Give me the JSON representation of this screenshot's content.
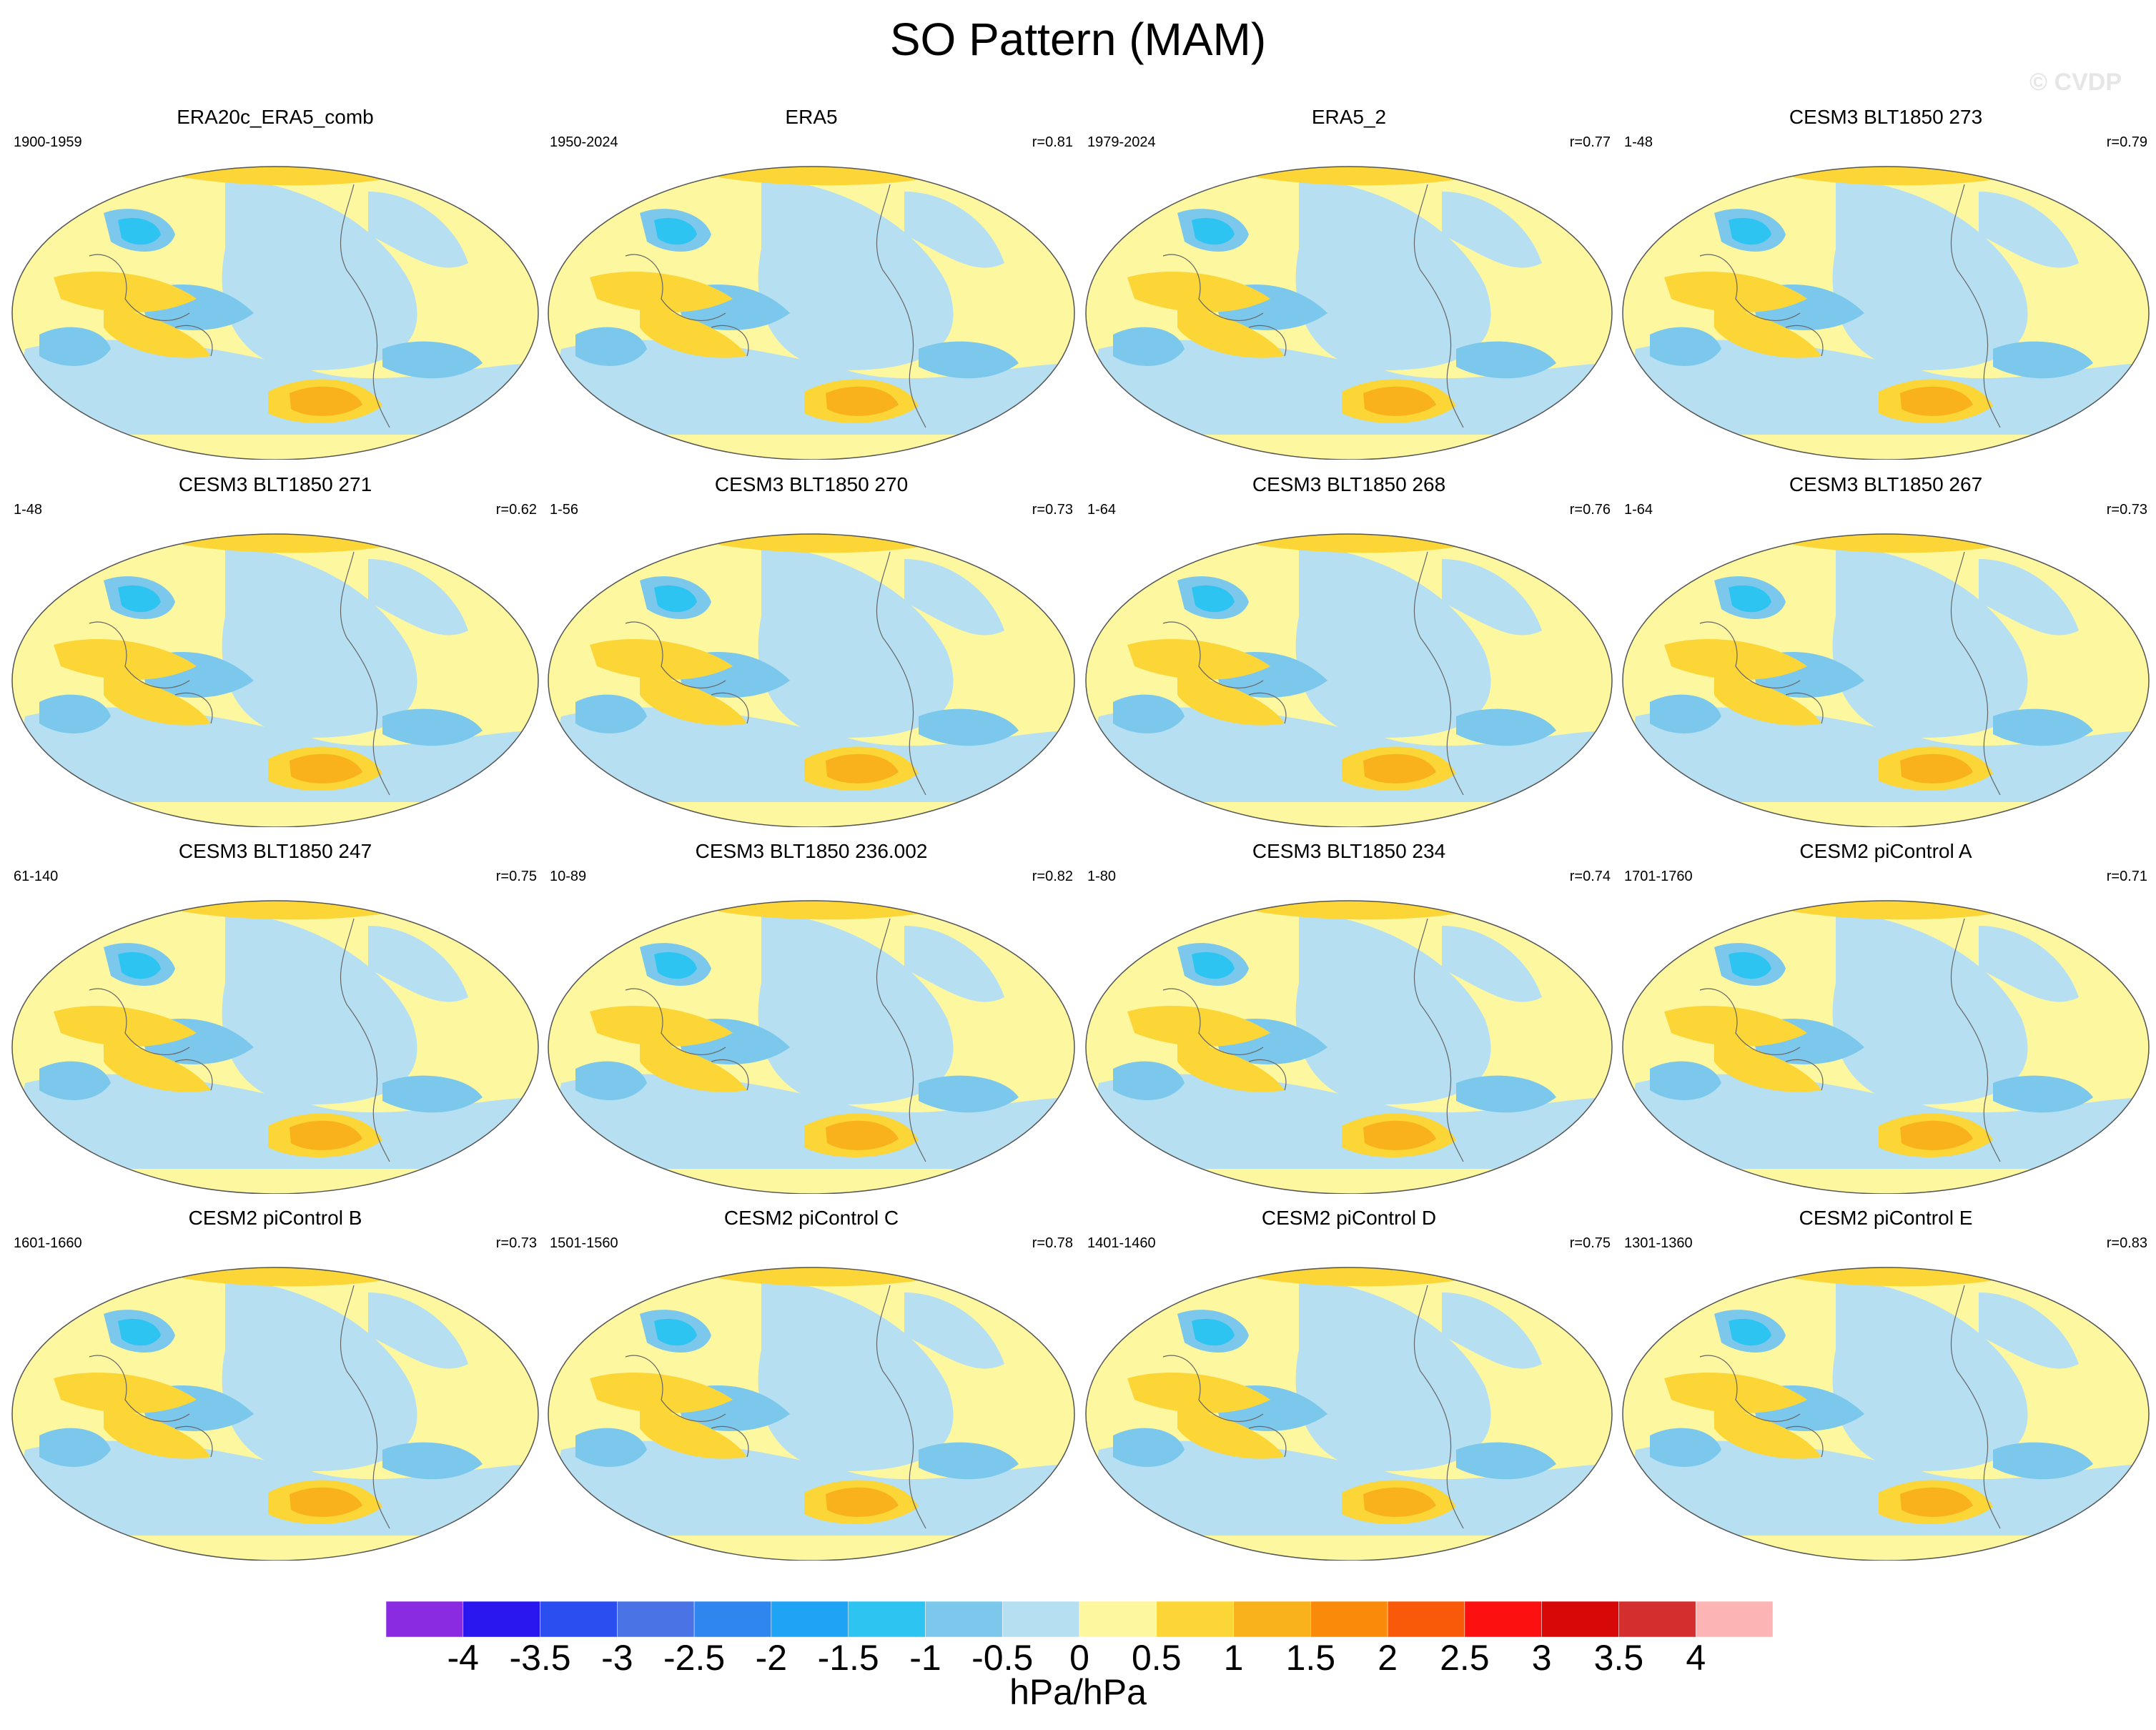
{
  "title": "SO Pattern (MAM)",
  "watermark": "© CVDP",
  "units": "hPa/hPa",
  "colorbar": {
    "labels": [
      "-4",
      "-3.5",
      "-3",
      "-2.5",
      "-2",
      "-1.5",
      "-1",
      "-0.5",
      "0",
      "0.5",
      "1",
      "1.5",
      "2",
      "2.5",
      "3",
      "3.5",
      "4"
    ],
    "colors": [
      "#8a2be2",
      "#2a17f0",
      "#2a4ef0",
      "#4a74e6",
      "#2f86ef",
      "#1ea3f5",
      "#2ec4f2",
      "#7cc8ec",
      "#b6dff2",
      "#fdf7a0",
      "#fbd636",
      "#f9b21c",
      "#f98a0a",
      "#f85a0a",
      "#fc1010",
      "#d60808",
      "#d42e2e",
      "#fcb4b4"
    ]
  },
  "panels": [
    {
      "title": "ERA20c_ERA5_comb",
      "range": "1900-1959",
      "corr": ""
    },
    {
      "title": "ERA5",
      "range": "1950-2024",
      "corr": "r=0.81"
    },
    {
      "title": "ERA5_2",
      "range": "1979-2024",
      "corr": "r=0.77"
    },
    {
      "title": "CESM3 BLT1850 273",
      "range": "1-48",
      "corr": "r=0.79"
    },
    {
      "title": "CESM3 BLT1850 271",
      "range": "1-48",
      "corr": "r=0.62"
    },
    {
      "title": "CESM3 BLT1850 270",
      "range": "1-56",
      "corr": "r=0.73"
    },
    {
      "title": "CESM3 BLT1850 268",
      "range": "1-64",
      "corr": "r=0.76"
    },
    {
      "title": "CESM3 BLT1850 267",
      "range": "1-64",
      "corr": "r=0.73"
    },
    {
      "title": "CESM3 BLT1850 247",
      "range": "61-140",
      "corr": "r=0.75"
    },
    {
      "title": "CESM3 BLT1850 236.002",
      "range": "10-89",
      "corr": "r=0.82"
    },
    {
      "title": "CESM3 BLT1850 234",
      "range": "1-80",
      "corr": "r=0.74"
    },
    {
      "title": "CESM2 piControl A",
      "range": "1701-1760",
      "corr": "r=0.71"
    },
    {
      "title": "CESM2 piControl B",
      "range": "1601-1660",
      "corr": "r=0.73"
    },
    {
      "title": "CESM2 piControl C",
      "range": "1501-1560",
      "corr": "r=0.78"
    },
    {
      "title": "CESM2 piControl D",
      "range": "1401-1460",
      "corr": "r=0.75"
    },
    {
      "title": "CESM2 piControl E",
      "range": "1301-1360",
      "corr": "r=0.83"
    }
  ]
}
